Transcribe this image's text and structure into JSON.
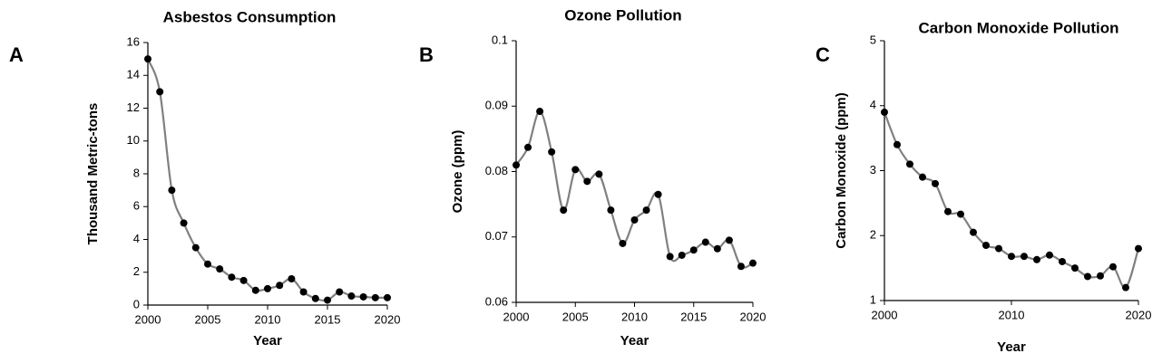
{
  "chart_data": [
    {
      "type": "line",
      "panel": "A",
      "title": "Asbestos Consumption",
      "xlabel": "Year",
      "ylabel": "Thousand Metric-tons",
      "x": [
        2000,
        2001,
        2002,
        2003,
        2004,
        2005,
        2006,
        2007,
        2008,
        2009,
        2010,
        2011,
        2012,
        2013,
        2014,
        2015,
        2016,
        2017,
        2018,
        2019,
        2020
      ],
      "values": [
        15,
        13,
        7,
        5,
        3.5,
        2.5,
        2.2,
        1.7,
        1.5,
        0.9,
        1.0,
        1.2,
        1.6,
        0.8,
        0.4,
        0.3,
        0.8,
        0.55,
        0.5,
        0.45,
        0.45
      ],
      "color": "#808080",
      "marker_color": "#000000",
      "xlim": [
        2000,
        2020
      ],
      "xticks": [
        2000,
        2005,
        2010,
        2015,
        2020
      ],
      "ylim": [
        0,
        16
      ],
      "yticks": [
        0,
        2,
        4,
        6,
        8,
        10,
        12,
        14,
        16
      ]
    },
    {
      "type": "line",
      "panel": "B",
      "title": "Ozone Pollution",
      "xlabel": "Year",
      "ylabel": "Ozone (ppm)",
      "x": [
        2000,
        2001,
        2002,
        2003,
        2004,
        2005,
        2006,
        2007,
        2008,
        2009,
        2010,
        2011,
        2012,
        2013,
        2014,
        2015,
        2016,
        2017,
        2018,
        2019,
        2020
      ],
      "values": [
        0.081,
        0.0837,
        0.0892,
        0.083,
        0.0741,
        0.0803,
        0.0785,
        0.0796,
        0.0741,
        0.069,
        0.0726,
        0.0741,
        0.0765,
        0.067,
        0.0672,
        0.068,
        0.0692,
        0.0682,
        0.0695,
        0.0655,
        0.066
      ],
      "color": "#808080",
      "marker_color": "#000000",
      "xlim": [
        2000,
        2020
      ],
      "xticks": [
        2000,
        2005,
        2010,
        2015,
        2020
      ],
      "ylim": [
        0.06,
        0.1
      ],
      "yticks": [
        0.06,
        0.07,
        0.08,
        0.09,
        0.1
      ]
    },
    {
      "type": "line",
      "panel": "C",
      "title": "Carbon Monoxide Pollution",
      "xlabel": "Year",
      "ylabel": "Carbon Monoxide (ppm)",
      "x": [
        2000,
        2001,
        2002,
        2003,
        2004,
        2005,
        2006,
        2007,
        2008,
        2009,
        2010,
        2011,
        2012,
        2013,
        2014,
        2015,
        2016,
        2017,
        2018,
        2019,
        2020
      ],
      "values": [
        3.9,
        3.4,
        3.1,
        2.9,
        2.8,
        2.37,
        2.33,
        2.05,
        1.85,
        1.8,
        1.68,
        1.68,
        1.63,
        1.7,
        1.6,
        1.5,
        1.37,
        1.38,
        1.52,
        1.2,
        1.8
      ],
      "color": "#808080",
      "marker_color": "#000000",
      "xlim": [
        2000,
        2020
      ],
      "xticks": [
        2000,
        2010,
        2020
      ],
      "ylim": [
        1,
        5
      ],
      "yticks": [
        1,
        2,
        3,
        4,
        5
      ]
    }
  ]
}
